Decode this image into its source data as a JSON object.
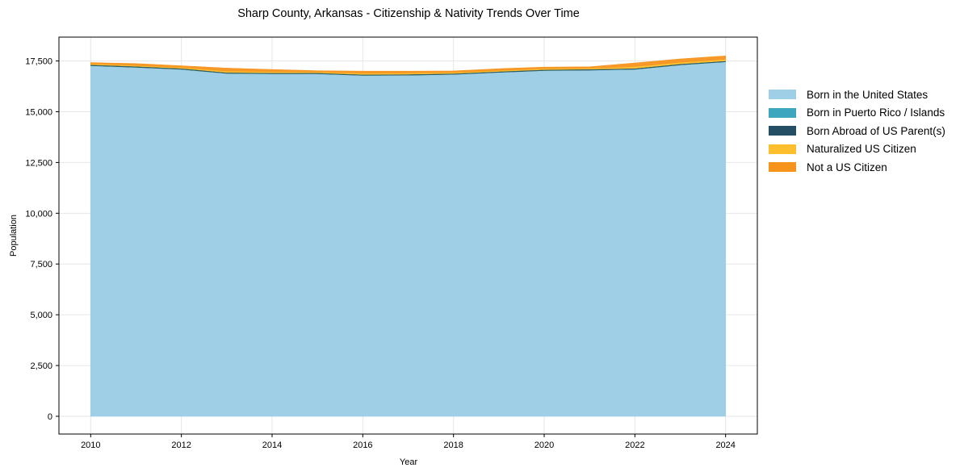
{
  "chart_data": {
    "type": "area",
    "stacked": true,
    "title": "Sharp County, Arkansas - Citizenship & Nativity Trends Over Time",
    "xlabel": "Year",
    "ylabel": "Population",
    "x": [
      2010,
      2011,
      2012,
      2013,
      2014,
      2015,
      2016,
      2017,
      2018,
      2019,
      2020,
      2021,
      2022,
      2023,
      2024
    ],
    "xticks": [
      2010,
      2012,
      2014,
      2016,
      2018,
      2020,
      2022,
      2024
    ],
    "xtick_labels": [
      "2010",
      "2012",
      "2014",
      "2016",
      "2018",
      "2020",
      "2022",
      "2024"
    ],
    "yticks": [
      0,
      2500,
      5000,
      7500,
      10000,
      12500,
      15000,
      17500
    ],
    "ytick_labels": [
      "0",
      "2,500",
      "5,000",
      "7,500",
      "10,000",
      "12,500",
      "15,000",
      "17,500"
    ],
    "xlim": [
      2009.3,
      2024.7
    ],
    "ylim": [
      -875,
      18675
    ],
    "grid": true,
    "legend_position": "right",
    "series": [
      {
        "name": "Born in the United States",
        "color": "#9ecfe6",
        "values": [
          17280,
          17200,
          17100,
          16900,
          16880,
          16880,
          16800,
          16810,
          16850,
          16950,
          17040,
          17060,
          17100,
          17320,
          17470
        ]
      },
      {
        "name": "Born in Puerto Rico / Islands",
        "color": "#3ba6bd",
        "values": [
          5,
          5,
          5,
          5,
          5,
          5,
          5,
          5,
          5,
          5,
          5,
          5,
          5,
          5,
          5
        ]
      },
      {
        "name": "Born Abroad of US Parent(s)",
        "color": "#234e63",
        "values": [
          30,
          30,
          30,
          30,
          30,
          30,
          30,
          30,
          30,
          30,
          30,
          30,
          30,
          30,
          30
        ]
      },
      {
        "name": "Naturalized US Citizen",
        "color": "#fdbf2d",
        "values": [
          45,
          45,
          45,
          70,
          60,
          45,
          60,
          60,
          50,
          50,
          45,
          45,
          90,
          80,
          80
        ]
      },
      {
        "name": "Not a US Citizen",
        "color": "#f7941d",
        "values": [
          60,
          90,
          80,
          145,
          105,
          60,
          105,
          95,
          75,
          85,
          80,
          75,
          175,
          165,
          165
        ]
      }
    ]
  }
}
